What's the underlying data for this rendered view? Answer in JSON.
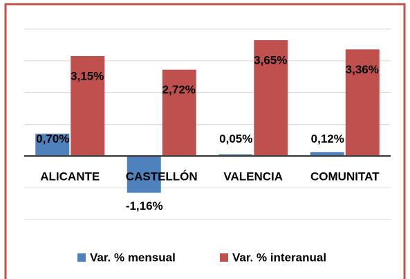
{
  "chart_data": {
    "type": "bar",
    "categories": [
      "ALICANTE",
      "CASTELLÓN",
      "VALENCIA",
      "COMUNITAT"
    ],
    "series": [
      {
        "name": "Var. % mensual",
        "color": "#4f81bd",
        "values": [
          0.7,
          -1.16,
          0.05,
          0.12
        ],
        "value_labels": [
          "0,70%",
          "-1,16%",
          "0,05%",
          "0,12%"
        ]
      },
      {
        "name": "Var. % interanual",
        "color": "#c0504d",
        "values": [
          3.15,
          2.72,
          3.65,
          3.36
        ],
        "value_labels": [
          "3,15%",
          "2,72%",
          "3,65%",
          "3,36%"
        ]
      }
    ],
    "ylim": [
      -2,
      4
    ],
    "yticks": [
      -2,
      -1,
      0,
      1,
      2,
      3,
      4
    ],
    "grid": true
  }
}
